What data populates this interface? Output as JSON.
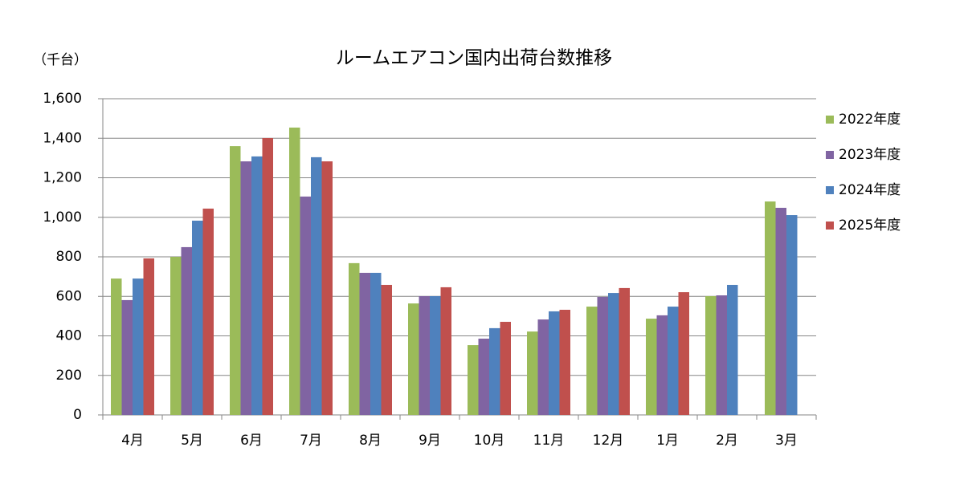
{
  "chart_data": {
    "type": "bar",
    "title": "ルームエアコン国内出荷台数推移",
    "y_label": "（千台）",
    "categories": [
      "4月",
      "5月",
      "6月",
      "7月",
      "8月",
      "9月",
      "10月",
      "11月",
      "12月",
      "1月",
      "2月",
      "3月"
    ],
    "series": [
      {
        "name": "2022年度",
        "color": "#9bbb59",
        "values": [
          690,
          800,
          1360,
          1454,
          768,
          564,
          353,
          422,
          548,
          487,
          601,
          1080
        ]
      },
      {
        "name": "2023年度",
        "color": "#8064a2",
        "values": [
          581,
          849,
          1283,
          1105,
          719,
          601,
          386,
          483,
          597,
          504,
          605,
          1048
        ]
      },
      {
        "name": "2024年度",
        "color": "#4f81bd",
        "values": [
          690,
          983,
          1308,
          1304,
          719,
          601,
          439,
          524,
          617,
          548,
          658,
          1011
        ]
      },
      {
        "name": "2025年度",
        "color": "#c0504d",
        "values": [
          792,
          1044,
          1401,
          1283,
          658,
          646,
          471,
          532,
          642,
          621,
          null,
          null
        ]
      }
    ],
    "ylim": [
      0,
      1600
    ],
    "yticks": [
      0,
      200,
      400,
      600,
      800,
      {
        "value": 1000,
        "label": "1,000"
      },
      {
        "value": 1200,
        "label": "1,200"
      },
      {
        "value": 1400,
        "label": "1,400"
      },
      {
        "value": 1600,
        "label": "1,600"
      }
    ],
    "grid": true,
    "legend": "right"
  }
}
